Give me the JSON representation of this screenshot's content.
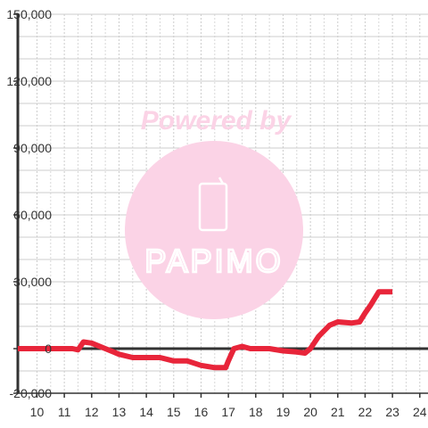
{
  "watermark": {
    "line1": "Powered by",
    "logo": "PAPIMO",
    "color": "#fbd3e6",
    "icon": "phone-icon"
  },
  "colors": {
    "series": "#e8253a",
    "axis": "#333333",
    "grid_major": "#cccccc",
    "grid_minor": "#d8d8d8"
  },
  "chart_data": {
    "type": "line",
    "title": "",
    "xlabel": "",
    "ylabel": "",
    "xlim": [
      9.3,
      24.3
    ],
    "ylim": [
      -20000,
      150000
    ],
    "x_ticks": [
      10,
      11,
      12,
      13,
      14,
      15,
      16,
      17,
      18,
      19,
      20,
      21,
      22,
      23,
      24
    ],
    "y_ticks": [
      -20000,
      0,
      30000,
      60000,
      90000,
      120000,
      150000
    ],
    "y_tick_labels": [
      "-20,000",
      "0",
      "30,000",
      "60,000",
      "90,000",
      "120,000",
      "150,000"
    ],
    "grid": true,
    "legend": "none",
    "series": [
      {
        "x": [
          9.3,
          11.3,
          11.5,
          11.7,
          12.0,
          12.5,
          13.0,
          13.5,
          14.0,
          14.5,
          15.0,
          15.5,
          16.0,
          16.5,
          16.9,
          17.0,
          17.2,
          17.5,
          17.8,
          18.5,
          19.0,
          19.5,
          19.8,
          20.0,
          20.3,
          20.7,
          21.0,
          21.5,
          21.8,
          22.0,
          22.2,
          22.5,
          23.0
        ],
        "y": [
          0,
          0,
          -500,
          3000,
          2500,
          0,
          -2500,
          -4000,
          -4000,
          -4000,
          -5500,
          -5500,
          -7500,
          -8500,
          -8500,
          -5500,
          0,
          1000,
          0,
          0,
          -1000,
          -1500,
          -2000,
          0,
          5500,
          10500,
          12000,
          11500,
          12000,
          16000,
          19500,
          25500,
          25500
        ]
      }
    ]
  }
}
